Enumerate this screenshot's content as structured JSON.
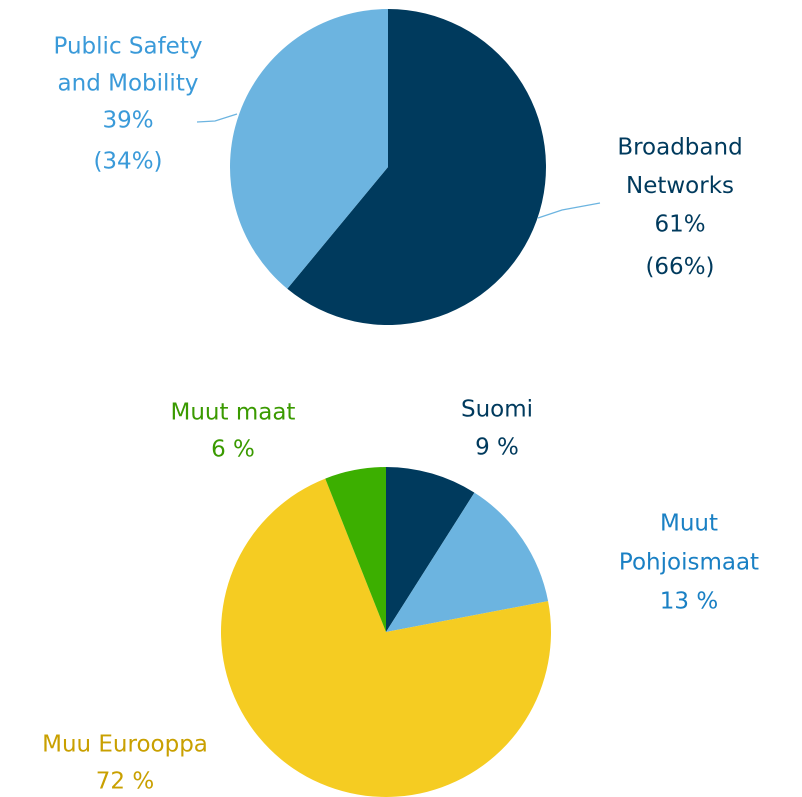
{
  "chart_data": [
    {
      "type": "pie",
      "categories": [
        [
          "Broadband",
          "Networks"
        ],
        [
          "Public Safety",
          "and Mobility"
        ]
      ],
      "values": [
        61,
        39
      ],
      "value_labels": [
        "61%",
        "39%"
      ],
      "prior_values": [
        66,
        34
      ],
      "prior_value_labels": [
        "(66%)",
        "(34%)"
      ],
      "colors": [
        "#003a5d",
        "#6cb4e0"
      ],
      "label_colors": [
        "#003a5d",
        "#3a9ad9"
      ]
    },
    {
      "type": "pie",
      "categories": [
        [
          "Suomi"
        ],
        [
          "Muut",
          "Pohjoismaat"
        ],
        [
          "Muu Eurooppa"
        ],
        [
          "Muut maat"
        ]
      ],
      "values": [
        9,
        13,
        72,
        6
      ],
      "value_labels": [
        "9 %",
        "13 %",
        "72 %",
        "6 %"
      ],
      "colors": [
        "#003a5d",
        "#6cb4e0",
        "#f5cc22",
        "#3caf00"
      ],
      "label_colors": [
        "#003a5d",
        "#1a80c4",
        "#c9a000",
        "#3a9a00"
      ]
    }
  ]
}
